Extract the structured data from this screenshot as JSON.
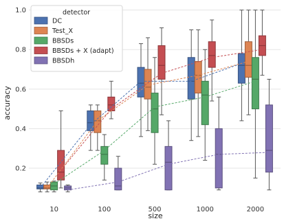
{
  "chart_data": {
    "type": "box",
    "xlabel": "size",
    "ylabel": "accuracy",
    "categories": [
      "10",
      "100",
      "500",
      "1000",
      "2000"
    ],
    "yticks": [
      "0.2",
      "0.4",
      "0.6",
      "0.8",
      "1.0"
    ],
    "ytick_values": [
      0.2,
      0.4,
      0.6,
      0.8,
      1.0
    ],
    "ylim": [
      0.03,
      1.03
    ],
    "grid": true,
    "legend": {
      "title": "detector",
      "placement": "top-left"
    },
    "series": [
      {
        "name": "DC",
        "color": "#4c72b0",
        "boxes": [
          {
            "q1": 0.095,
            "median": 0.1,
            "q3": 0.115,
            "wlow": 0.08,
            "whigh": 0.125
          },
          {
            "q1": 0.39,
            "median": 0.43,
            "q3": 0.49,
            "wlow": 0.29,
            "whigh": 0.52
          },
          {
            "q1": 0.56,
            "median": 0.63,
            "q3": 0.71,
            "wlow": 0.36,
            "whigh": 0.83
          },
          {
            "q1": 0.55,
            "median": 0.64,
            "q3": 0.76,
            "wlow": 0.34,
            "whigh": 0.9
          },
          {
            "q1": 0.63,
            "median": 0.72,
            "q3": 0.78,
            "wlow": 0.44,
            "whigh": 1.0
          }
        ],
        "means": [
          0.1,
          0.42,
          0.64,
          0.64,
          0.73
        ]
      },
      {
        "name": "Test_X",
        "color": "#dd8452",
        "boxes": [
          {
            "q1": 0.095,
            "median": 0.1,
            "q3": 0.115,
            "wlow": 0.08,
            "whigh": 0.13
          },
          {
            "q1": 0.38,
            "median": 0.44,
            "q3": 0.49,
            "wlow": 0.29,
            "whigh": 0.52
          },
          {
            "q1": 0.55,
            "median": 0.61,
            "q3": 0.7,
            "wlow": 0.39,
            "whigh": 0.86
          },
          {
            "q1": 0.58,
            "median": 0.67,
            "q3": 0.74,
            "wlow": 0.36,
            "whigh": 0.9
          },
          {
            "q1": 0.66,
            "median": 0.72,
            "q3": 0.84,
            "wlow": 0.47,
            "whigh": 1.0
          }
        ],
        "means": [
          0.1,
          0.44,
          0.62,
          0.67,
          0.74
        ]
      },
      {
        "name": "BBSDs",
        "color": "#55a868",
        "boxes": [
          {
            "q1": 0.09,
            "median": 0.11,
            "q3": 0.13,
            "wlow": 0.08,
            "whigh": 0.135
          },
          {
            "q1": 0.22,
            "median": 0.27,
            "q3": 0.31,
            "wlow": 0.14,
            "whigh": 0.37
          },
          {
            "q1": 0.38,
            "median": 0.5,
            "q3": 0.58,
            "wlow": 0.22,
            "whigh": 0.76
          },
          {
            "q1": 0.42,
            "median": 0.57,
            "q3": 0.64,
            "wlow": 0.24,
            "whigh": 0.8
          },
          {
            "q1": 0.5,
            "median": 0.65,
            "q3": 0.76,
            "wlow": 0.15,
            "whigh": 1.0
          }
        ],
        "means": [
          0.12,
          0.29,
          0.51,
          0.56,
          0.64
        ]
      },
      {
        "name": "BBSDs + X (adapt)",
        "color": "#c44e52",
        "boxes": [
          {
            "q1": 0.14,
            "median": 0.18,
            "q3": 0.29,
            "wlow": 0.1,
            "whigh": 0.49
          },
          {
            "q1": 0.49,
            "median": 0.52,
            "q3": 0.56,
            "wlow": 0.45,
            "whigh": 0.64
          },
          {
            "q1": 0.65,
            "median": 0.72,
            "q3": 0.82,
            "wlow": 0.47,
            "whigh": 0.91
          },
          {
            "q1": 0.71,
            "median": 0.77,
            "q3": 0.84,
            "wlow": 0.54,
            "whigh": 0.95
          },
          {
            "q1": 0.77,
            "median": 0.82,
            "q3": 0.87,
            "wlow": 0.67,
            "whigh": 1.0
          }
        ],
        "means": [
          0.19,
          0.5,
          0.68,
          0.76,
          0.8
        ]
      },
      {
        "name": "BBSDh",
        "color": "#8172b3",
        "boxes": [
          {
            "q1": 0.09,
            "median": 0.1,
            "q3": 0.11,
            "wlow": 0.08,
            "whigh": 0.115
          },
          {
            "q1": 0.09,
            "median": 0.11,
            "q3": 0.2,
            "wlow": 0.09,
            "whigh": 0.26
          },
          {
            "q1": 0.09,
            "median": 0.23,
            "q3": 0.31,
            "wlow": 0.09,
            "whigh": 0.44
          },
          {
            "q1": 0.1,
            "median": 0.27,
            "q3": 0.4,
            "wlow": 0.09,
            "whigh": 0.56
          },
          {
            "q1": 0.18,
            "median": 0.29,
            "q3": 0.52,
            "wlow": 0.09,
            "whigh": 0.65
          }
        ],
        "means": [
          0.09,
          0.13,
          0.22,
          0.27,
          0.28
        ]
      }
    ]
  }
}
